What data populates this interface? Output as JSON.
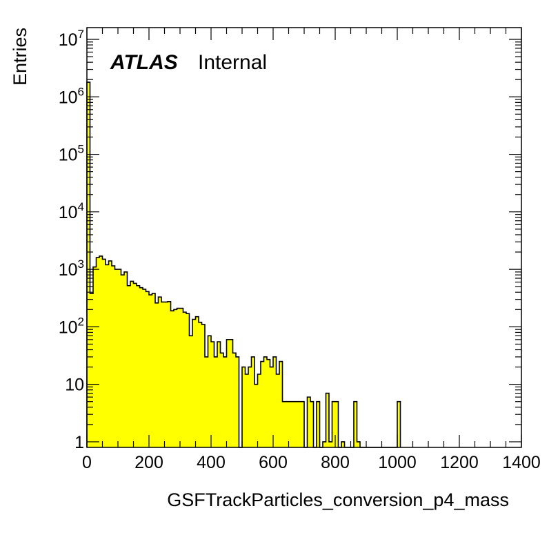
{
  "chart_data": {
    "type": "bar",
    "style": "step-histogram",
    "xlabel": "GSFTrackParticles_conversion_p4_mass",
    "ylabel": "Entries",
    "xlim": [
      0,
      1400
    ],
    "ylim": [
      0.8,
      16000000
    ],
    "ylog": true,
    "grid": false,
    "fill_color": "#ffff00",
    "line_color": "#000000",
    "bin_width": 10,
    "x_ticks": [
      0,
      200,
      400,
      600,
      800,
      1000,
      1200,
      1400
    ],
    "y_ticks": [
      {
        "value": 1,
        "base": "1",
        "exp": ""
      },
      {
        "value": 10,
        "base": "10",
        "exp": ""
      },
      {
        "value": 100,
        "base": "10",
        "exp": "2"
      },
      {
        "value": 1000,
        "base": "10",
        "exp": "3"
      },
      {
        "value": 10000,
        "base": "10",
        "exp": "4"
      },
      {
        "value": 100000,
        "base": "10",
        "exp": "5"
      },
      {
        "value": 1000000,
        "base": "10",
        "exp": "6"
      },
      {
        "value": 10000000,
        "base": "10",
        "exp": "7"
      }
    ],
    "values": [
      1800000,
      380,
      1100,
      1600,
      1700,
      1500,
      1200,
      1400,
      1150,
      1000,
      1000,
      800,
      900,
      520,
      620,
      570,
      520,
      480,
      450,
      410,
      360,
      380,
      260,
      330,
      270,
      270,
      275,
      190,
      200,
      210,
      210,
      180,
      170,
      70,
      135,
      150,
      120,
      110,
      30,
      70,
      55,
      30,
      55,
      35,
      30,
      60,
      60,
      35,
      30,
      0,
      20,
      15,
      20,
      30,
      10,
      15,
      25,
      30,
      27,
      20,
      30,
      15,
      25,
      5,
      5,
      5,
      5,
      5,
      5,
      5,
      0,
      6,
      5,
      0,
      5,
      0,
      1,
      7,
      1,
      5,
      5,
      0,
      1,
      0,
      0,
      0,
      5,
      1,
      0,
      0,
      0,
      0,
      0,
      0,
      0,
      0,
      0,
      0,
      0,
      0,
      5
    ]
  },
  "annotation": {
    "experiment": "ATLAS",
    "status": "Internal"
  }
}
